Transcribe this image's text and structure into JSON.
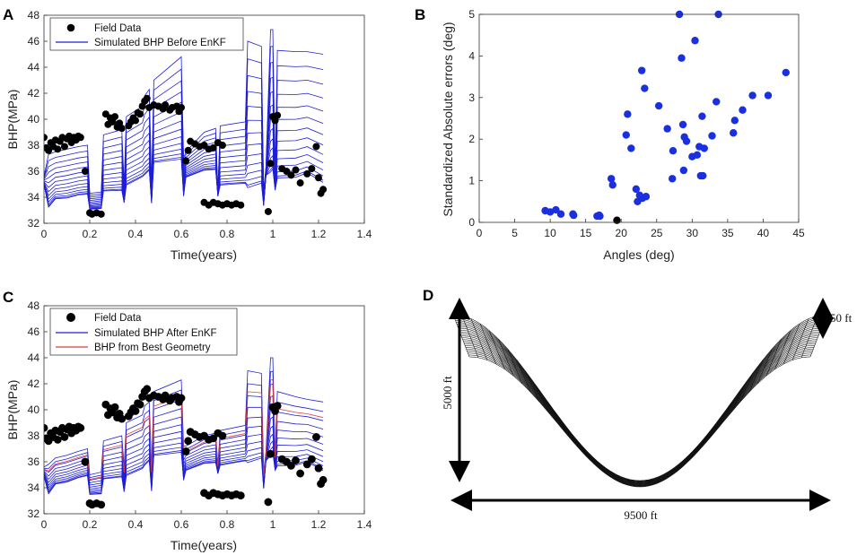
{
  "chart_data": [
    {
      "panel": "A",
      "type": "line",
      "title": "",
      "xlabel": "Time(years)",
      "ylabel": "BHP(MPa)",
      "xlim": [
        0,
        1.4
      ],
      "ylim": [
        32,
        48
      ],
      "xticks": [
        "0",
        "0.2",
        "0.4",
        "0.6",
        "0.8",
        "1",
        "1.2",
        "1.4"
      ],
      "yticks": [
        "32",
        "34",
        "36",
        "38",
        "40",
        "42",
        "44",
        "46",
        "48"
      ],
      "legend": [
        "Field Data",
        "Simulated BHP Before EnKF"
      ],
      "legend_position": "top-left",
      "ensemble_count": 14,
      "ensemble_spread": [
        0.42,
        0.53
      ],
      "field_data": [
        [
          0.0,
          38.6
        ],
        [
          0.01,
          37.8
        ],
        [
          0.02,
          37.6
        ],
        [
          0.03,
          38.2
        ],
        [
          0.04,
          37.9
        ],
        [
          0.05,
          38.4
        ],
        [
          0.06,
          37.7
        ],
        [
          0.07,
          38.3
        ],
        [
          0.08,
          38.6
        ],
        [
          0.09,
          37.9
        ],
        [
          0.1,
          38.5
        ],
        [
          0.11,
          38.7
        ],
        [
          0.12,
          38.2
        ],
        [
          0.13,
          38.6
        ],
        [
          0.14,
          38.4
        ],
        [
          0.15,
          38.7
        ],
        [
          0.16,
          38.6
        ],
        [
          0.18,
          36.0
        ],
        [
          0.2,
          32.8
        ],
        [
          0.21,
          32.7
        ],
        [
          0.23,
          32.8
        ],
        [
          0.25,
          32.7
        ],
        [
          0.27,
          40.4
        ],
        [
          0.28,
          39.6
        ],
        [
          0.29,
          40.1
        ],
        [
          0.3,
          39.8
        ],
        [
          0.31,
          40.2
        ],
        [
          0.32,
          39.4
        ],
        [
          0.33,
          39.7
        ],
        [
          0.34,
          39.3
        ],
        [
          0.37,
          39.5
        ],
        [
          0.38,
          39.8
        ],
        [
          0.39,
          40.1
        ],
        [
          0.4,
          39.9
        ],
        [
          0.41,
          40.5
        ],
        [
          0.42,
          40.4
        ],
        [
          0.43,
          41.0
        ],
        [
          0.44,
          41.4
        ],
        [
          0.45,
          41.6
        ],
        [
          0.46,
          40.9
        ],
        [
          0.48,
          41.1
        ],
        [
          0.5,
          41.0
        ],
        [
          0.52,
          40.8
        ],
        [
          0.53,
          41.1
        ],
        [
          0.55,
          40.7
        ],
        [
          0.56,
          40.9
        ],
        [
          0.58,
          41.0
        ],
        [
          0.59,
          40.6
        ],
        [
          0.6,
          40.9
        ],
        [
          0.62,
          36.8
        ],
        [
          0.63,
          37.6
        ],
        [
          0.64,
          38.3
        ],
        [
          0.66,
          38.1
        ],
        [
          0.68,
          37.9
        ],
        [
          0.7,
          38.0
        ],
        [
          0.72,
          37.7
        ],
        [
          0.74,
          37.8
        ],
        [
          0.76,
          38.2
        ],
        [
          0.78,
          38.0
        ],
        [
          0.7,
          33.6
        ],
        [
          0.72,
          33.4
        ],
        [
          0.74,
          33.6
        ],
        [
          0.76,
          33.5
        ],
        [
          0.78,
          33.4
        ],
        [
          0.8,
          33.5
        ],
        [
          0.82,
          33.4
        ],
        [
          0.84,
          33.5
        ],
        [
          0.86,
          33.4
        ],
        [
          0.98,
          32.9
        ],
        [
          0.99,
          36.6
        ],
        [
          1.0,
          40.2
        ],
        [
          1.01,
          39.9
        ],
        [
          1.02,
          40.3
        ],
        [
          1.04,
          36.2
        ],
        [
          1.06,
          36.0
        ],
        [
          1.08,
          35.7
        ],
        [
          1.1,
          36.1
        ],
        [
          1.12,
          35.1
        ],
        [
          1.15,
          35.8
        ],
        [
          1.17,
          36.2
        ],
        [
          1.19,
          37.9
        ],
        [
          1.2,
          35.5
        ],
        [
          1.21,
          34.3
        ],
        [
          1.22,
          34.6
        ]
      ],
      "envelope": [
        [
          0.0,
          34.9,
          35.6
        ],
        [
          0.02,
          33.3,
          37.3
        ],
        [
          0.05,
          33.8,
          37.5
        ],
        [
          0.1,
          34.0,
          37.7
        ],
        [
          0.15,
          34.1,
          37.9
        ],
        [
          0.19,
          34.3,
          38.0
        ],
        [
          0.2,
          33.0,
          34.3
        ],
        [
          0.25,
          33.2,
          34.4
        ],
        [
          0.26,
          34.4,
          38.8
        ],
        [
          0.34,
          34.6,
          39.2
        ],
        [
          0.35,
          33.5,
          35.0
        ],
        [
          0.36,
          35.0,
          40.2
        ],
        [
          0.43,
          35.5,
          41.0
        ],
        [
          0.44,
          35.8,
          41.8
        ],
        [
          0.46,
          36.0,
          42.3
        ],
        [
          0.47,
          33.6,
          35.0
        ],
        [
          0.48,
          36.6,
          43.0
        ],
        [
          0.6,
          37.0,
          44.8
        ],
        [
          0.61,
          34.0,
          37.0
        ],
        [
          0.62,
          35.6,
          37.5
        ],
        [
          0.7,
          36.0,
          39.0
        ],
        [
          0.75,
          36.2,
          39.3
        ],
        [
          0.76,
          34.0,
          34.6
        ],
        [
          0.77,
          35.0,
          39.5
        ],
        [
          0.88,
          35.0,
          39.8
        ],
        [
          0.89,
          34.8,
          46.0
        ],
        [
          0.95,
          35.0,
          45.6
        ],
        [
          0.96,
          33.4,
          34.5
        ],
        [
          0.97,
          35.6,
          36.4
        ],
        [
          0.99,
          36.0,
          46.9
        ],
        [
          1.0,
          36.1,
          46.9
        ],
        [
          1.01,
          34.6,
          36.0
        ],
        [
          1.02,
          35.4,
          45.3
        ],
        [
          1.1,
          35.6,
          45.2
        ],
        [
          1.15,
          35.8,
          45.2
        ],
        [
          1.22,
          35.2,
          45.0
        ]
      ]
    },
    {
      "panel": "B",
      "type": "scatter",
      "title": "",
      "xlabel": "Angles (deg)",
      "ylabel": "Standardized Absolute errors (deg)",
      "xlim": [
        0,
        45
      ],
      "ylim": [
        0,
        5
      ],
      "xticks": [
        "0",
        "5",
        "10",
        "15",
        "20",
        "25",
        "30",
        "35",
        "40",
        "45"
      ],
      "yticks": [
        "0",
        "1",
        "2",
        "3",
        "4",
        "5"
      ],
      "points": [
        [
          9.3,
          0.28
        ],
        [
          10.0,
          0.25
        ],
        [
          10.8,
          0.3
        ],
        [
          11.5,
          0.2
        ],
        [
          13.2,
          0.2
        ],
        [
          13.3,
          0.17
        ],
        [
          16.6,
          0.15
        ],
        [
          16.9,
          0.17
        ],
        [
          17.0,
          0.15
        ],
        [
          18.6,
          1.05
        ],
        [
          18.8,
          0.9
        ],
        [
          20.7,
          2.1
        ],
        [
          20.9,
          2.6
        ],
        [
          21.4,
          1.78
        ],
        [
          22.1,
          0.8
        ],
        [
          22.3,
          0.5
        ],
        [
          22.6,
          0.65
        ],
        [
          22.9,
          3.65
        ],
        [
          23.0,
          0.58
        ],
        [
          23.3,
          3.22
        ],
        [
          23.5,
          0.62
        ],
        [
          25.3,
          2.8
        ],
        [
          26.5,
          2.25
        ],
        [
          27.2,
          1.05
        ],
        [
          27.3,
          1.72
        ],
        [
          28.2,
          5.0
        ],
        [
          28.5,
          3.95
        ],
        [
          28.7,
          2.35
        ],
        [
          28.8,
          1.25
        ],
        [
          28.9,
          2.05
        ],
        [
          29.2,
          1.95
        ],
        [
          30.0,
          1.58
        ],
        [
          30.4,
          4.37
        ],
        [
          30.7,
          1.62
        ],
        [
          31.0,
          1.82
        ],
        [
          31.2,
          1.12
        ],
        [
          31.4,
          2.55
        ],
        [
          31.5,
          1.12
        ],
        [
          31.7,
          1.78
        ],
        [
          32.8,
          2.08
        ],
        [
          33.4,
          2.9
        ],
        [
          33.7,
          5.0
        ],
        [
          35.8,
          2.15
        ],
        [
          36.0,
          2.45
        ],
        [
          37.1,
          2.7
        ],
        [
          38.5,
          3.05
        ],
        [
          40.7,
          3.05
        ],
        [
          43.2,
          3.6
        ]
      ],
      "black_points": [
        [
          19.4,
          0.05
        ]
      ]
    },
    {
      "panel": "C",
      "type": "line",
      "title": "",
      "xlabel": "Time(years)",
      "ylabel": "BHP(MPa)",
      "xlim": [
        0,
        1.4
      ],
      "ylim": [
        32,
        48
      ],
      "xticks": [
        "0",
        "0.2",
        "0.4",
        "0.6",
        "0.8",
        "1",
        "1.2",
        "1.4"
      ],
      "yticks": [
        "32",
        "34",
        "36",
        "38",
        "40",
        "42",
        "44",
        "46",
        "48"
      ],
      "legend": [
        "Field Data",
        "Simulated BHP After EnKF",
        "BHP from Best Geometry"
      ],
      "legend_position": "top-left",
      "ensemble_count": 12,
      "ensemble_spread": [
        0.55,
        0.62
      ],
      "envelope": [
        [
          0.0,
          34.8,
          35.6
        ],
        [
          0.02,
          33.6,
          35.8
        ],
        [
          0.05,
          34.2,
          36.3
        ],
        [
          0.1,
          34.5,
          36.5
        ],
        [
          0.15,
          34.7,
          36.8
        ],
        [
          0.19,
          35.0,
          37.0
        ],
        [
          0.2,
          33.4,
          35.0
        ],
        [
          0.25,
          33.6,
          35.2
        ],
        [
          0.26,
          34.6,
          37.6
        ],
        [
          0.34,
          34.9,
          38.0
        ],
        [
          0.35,
          33.6,
          35.6
        ],
        [
          0.36,
          35.0,
          39.0
        ],
        [
          0.43,
          35.4,
          39.6
        ],
        [
          0.44,
          35.8,
          40.3
        ],
        [
          0.46,
          36.0,
          40.6
        ],
        [
          0.47,
          33.8,
          35.6
        ],
        [
          0.48,
          36.4,
          41.4
        ],
        [
          0.6,
          36.8,
          42.3
        ],
        [
          0.61,
          34.5,
          37.2
        ],
        [
          0.62,
          35.4,
          37.2
        ],
        [
          0.7,
          35.8,
          38.0
        ],
        [
          0.75,
          36.0,
          38.2
        ],
        [
          0.76,
          35.0,
          35.8
        ],
        [
          0.77,
          35.8,
          38.4
        ],
        [
          0.88,
          36.0,
          38.8
        ],
        [
          0.89,
          36.0,
          43.0
        ],
        [
          0.95,
          36.2,
          42.8
        ],
        [
          0.96,
          34.0,
          35.2
        ],
        [
          0.97,
          36.0,
          36.8
        ],
        [
          0.99,
          36.5,
          44.0
        ],
        [
          1.0,
          36.6,
          44.0
        ],
        [
          1.01,
          35.4,
          36.6
        ],
        [
          1.02,
          35.6,
          41.4
        ],
        [
          1.1,
          35.8,
          41.0
        ],
        [
          1.15,
          35.9,
          40.8
        ],
        [
          1.22,
          35.4,
          40.6
        ]
      ],
      "best_fit_offset": 0.85
    },
    {
      "panel": "D",
      "type": "mesh",
      "title": "",
      "annotations": [
        "50 ft",
        "5000 ft",
        "9500 ft"
      ]
    }
  ],
  "colors": {
    "simulated": "#1f1fd6",
    "best": "#e0403a",
    "field": "#000000",
    "scatter": "#1a2fe0",
    "mesh": "#111111"
  }
}
